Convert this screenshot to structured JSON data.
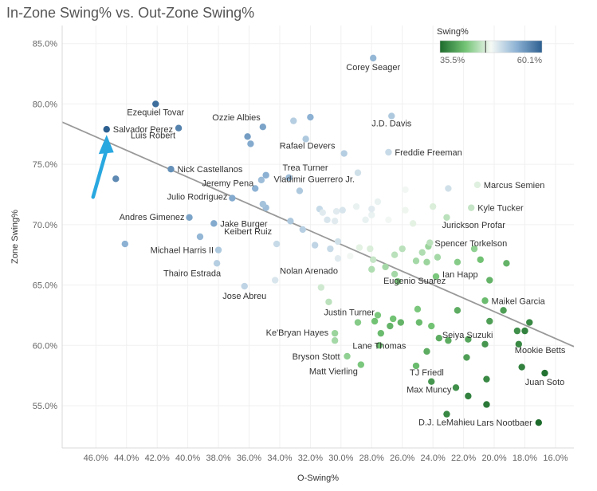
{
  "chart_data": {
    "type": "scatter",
    "title": "In-Zone Swing% vs. Out-Zone Swing%",
    "xlabel": "O-Swing%",
    "ylabel": "Zone Swing%",
    "x_reversed": true,
    "xlim": [
      48.2,
      14.8
    ],
    "ylim": [
      51.5,
      86.5
    ],
    "x_ticks": [
      "46.0%",
      "44.0%",
      "42.0%",
      "40.0%",
      "38.0%",
      "36.0%",
      "34.0%",
      "32.0%",
      "30.0%",
      "28.0%",
      "26.0%",
      "24.0%",
      "22.0%",
      "20.0%",
      "18.0%",
      "16.0%"
    ],
    "x_tick_values": [
      46,
      44,
      42,
      40,
      38,
      36,
      34,
      32,
      30,
      28,
      26,
      24,
      22,
      20,
      18,
      16
    ],
    "y_ticks": [
      "55.0%",
      "60.0%",
      "65.0%",
      "70.0%",
      "75.0%",
      "80.0%",
      "85.0%"
    ],
    "y_tick_values": [
      55,
      60,
      65,
      70,
      75,
      80,
      85
    ],
    "grid": true,
    "color_legend": {
      "title": "Swing%",
      "min_label": "35.5%",
      "max_label": "60.1%",
      "min": 35.5,
      "max": 60.1,
      "mid": 46.5,
      "colors": [
        "#1d6b2c",
        "#74c476",
        "#f5f9f5",
        "#8db2d4",
        "#2c5f90"
      ]
    },
    "trendline": {
      "x": [
        48.2,
        14.8
      ],
      "y": [
        78.5,
        59.9
      ],
      "color": "#999999"
    },
    "annotation": {
      "type": "arrow",
      "target": "Salvador Perez",
      "color": "#29a8e0"
    },
    "points": [
      {
        "name": "Corey Seager",
        "x": 27.9,
        "y": 83.8,
        "swing": 53.5
      },
      {
        "name": "Ezequiel Tovar",
        "x": 42.1,
        "y": 80.0,
        "swing": 59.0
      },
      {
        "name": "Salvador Perez",
        "x": 45.3,
        "y": 77.9,
        "swing": 60.1
      },
      {
        "name": "Luis Robert",
        "x": 40.6,
        "y": 78.0,
        "swing": 57.5
      },
      {
        "name": "Ozzie Albies",
        "x": 35.1,
        "y": 78.1,
        "swing": 55.0
      },
      {
        "name": "J.D. Davis",
        "x": 26.7,
        "y": 79.0,
        "swing": 52.0
      },
      {
        "name": "Rafael Devers",
        "x": 32.3,
        "y": 77.1,
        "swing": 52.0
      },
      {
        "name": "Freddie Freeman",
        "x": 26.9,
        "y": 76.0,
        "swing": 50.5
      },
      {
        "name": "Nick Castellanos",
        "x": 41.1,
        "y": 74.6,
        "swing": 56.5
      },
      {
        "name": "Trea Turner",
        "x": 33.4,
        "y": 73.9,
        "swing": 53.0
      },
      {
        "name": "Vladimir Guerrero Jr.",
        "x": 28.9,
        "y": 74.3,
        "swing": 50.0
      },
      {
        "name": "Marcus Semien",
        "x": 21.1,
        "y": 73.3,
        "swing": 46.8
      },
      {
        "name": "Jeremy Pena",
        "x": 35.6,
        "y": 73.0,
        "swing": 54.0
      },
      {
        "name": "Julio Rodriguez",
        "x": 37.1,
        "y": 72.2,
        "swing": 54.5
      },
      {
        "name": "Kyle Tucker",
        "x": 21.5,
        "y": 71.4,
        "swing": 45.5
      },
      {
        "name": "Andres Gimenez",
        "x": 39.9,
        "y": 70.6,
        "swing": 55.0
      },
      {
        "name": "Jurickson Profar",
        "x": 23.1,
        "y": 70.6,
        "swing": 45.0
      },
      {
        "name": "Jake Burger",
        "x": 38.3,
        "y": 70.1,
        "swing": 54.5
      },
      {
        "name": "Spencer Torkelson",
        "x": 24.3,
        "y": 68.2,
        "swing": 43.5
      },
      {
        "name": "Michael Harris II",
        "x": 38.0,
        "y": 67.9,
        "swing": 52.0
      },
      {
        "name": "Keibert Ruiz",
        "x": 34.2,
        "y": 68.4,
        "swing": 50.5
      },
      {
        "name": "Thairo Estrada",
        "x": 38.1,
        "y": 66.8,
        "swing": 51.5
      },
      {
        "name": "Nolan Arenado",
        "x": 34.3,
        "y": 65.4,
        "swing": 49.5
      },
      {
        "name": "Ian Happ",
        "x": 23.8,
        "y": 65.7,
        "swing": 42.0
      },
      {
        "name": "Jose Abreu",
        "x": 36.3,
        "y": 64.9,
        "swing": 51.0
      },
      {
        "name": "Eugenio Suarez",
        "x": 26.3,
        "y": 65.3,
        "swing": 42.0
      },
      {
        "name": "Maikel Garcia",
        "x": 20.6,
        "y": 63.7,
        "swing": 41.0
      },
      {
        "name": "Justin Turner",
        "x": 27.6,
        "y": 62.5,
        "swing": 42.0
      },
      {
        "name": "Ke'Bryan Hayes",
        "x": 30.4,
        "y": 61.0,
        "swing": 43.5
      },
      {
        "name": "Seiya Suzuki",
        "x": 23.6,
        "y": 60.6,
        "swing": 40.0
      },
      {
        "name": "Lane Thomas",
        "x": 27.5,
        "y": 60.0,
        "swing": 41.0
      },
      {
        "name": "Mookie Betts",
        "x": 18.4,
        "y": 60.1,
        "swing": 37.5
      },
      {
        "name": "Bryson Stott",
        "x": 29.6,
        "y": 59.1,
        "swing": 43.0
      },
      {
        "name": "Matt Vierling",
        "x": 28.7,
        "y": 58.4,
        "swing": 42.0
      },
      {
        "name": "TJ Friedl",
        "x": 25.1,
        "y": 58.3,
        "swing": 41.0
      },
      {
        "name": "Juan Soto",
        "x": 16.7,
        "y": 57.7,
        "swing": 36.0
      },
      {
        "name": "Max Muncy",
        "x": 24.1,
        "y": 57.0,
        "swing": 38.5
      },
      {
        "name": "D.J. LeMahieu",
        "x": 23.1,
        "y": 54.3,
        "swing": 37.5
      },
      {
        "name": "Lars Nootbaer",
        "x": 17.1,
        "y": 53.6,
        "swing": 35.5
      },
      {
        "name": "",
        "x": 44.7,
        "y": 73.8,
        "swing": 57.0
      },
      {
        "name": "",
        "x": 44.1,
        "y": 68.4,
        "swing": 54.0
      },
      {
        "name": "",
        "x": 39.2,
        "y": 69.0,
        "swing": 53.5
      },
      {
        "name": "",
        "x": 36.1,
        "y": 77.3,
        "swing": 55.5
      },
      {
        "name": "",
        "x": 35.9,
        "y": 76.7,
        "swing": 54.5
      },
      {
        "name": "",
        "x": 33.1,
        "y": 78.6,
        "swing": 51.5
      },
      {
        "name": "",
        "x": 32.0,
        "y": 78.9,
        "swing": 54.0
      },
      {
        "name": "",
        "x": 34.9,
        "y": 74.1,
        "swing": 54.0
      },
      {
        "name": "",
        "x": 35.2,
        "y": 73.7,
        "swing": 53.0
      },
      {
        "name": "",
        "x": 34.9,
        "y": 71.4,
        "swing": 53.0
      },
      {
        "name": "",
        "x": 35.1,
        "y": 71.7,
        "swing": 52.5
      },
      {
        "name": "",
        "x": 32.7,
        "y": 72.8,
        "swing": 52.0
      },
      {
        "name": "",
        "x": 33.3,
        "y": 70.3,
        "swing": 52.0
      },
      {
        "name": "",
        "x": 32.5,
        "y": 69.6,
        "swing": 51.5
      },
      {
        "name": "",
        "x": 29.8,
        "y": 75.9,
        "swing": 51.5
      },
      {
        "name": "",
        "x": 31.4,
        "y": 71.3,
        "swing": 50.5
      },
      {
        "name": "",
        "x": 31.2,
        "y": 71.0,
        "swing": 49.0
      },
      {
        "name": "",
        "x": 30.9,
        "y": 70.4,
        "swing": 49.5
      },
      {
        "name": "",
        "x": 30.3,
        "y": 71.1,
        "swing": 49.0
      },
      {
        "name": "",
        "x": 30.4,
        "y": 70.3,
        "swing": 49.0
      },
      {
        "name": "",
        "x": 29.9,
        "y": 71.2,
        "swing": 49.5
      },
      {
        "name": "",
        "x": 29.0,
        "y": 71.5,
        "swing": 48.5
      },
      {
        "name": "",
        "x": 28.0,
        "y": 70.8,
        "swing": 48.5
      },
      {
        "name": "",
        "x": 28.0,
        "y": 71.3,
        "swing": 49.0
      },
      {
        "name": "",
        "x": 28.4,
        "y": 70.4,
        "swing": 48.5
      },
      {
        "name": "",
        "x": 26.9,
        "y": 70.4,
        "swing": 48.0
      },
      {
        "name": "",
        "x": 25.8,
        "y": 72.9,
        "swing": 48.0
      },
      {
        "name": "",
        "x": 25.8,
        "y": 71.2,
        "swing": 47.5
      },
      {
        "name": "",
        "x": 27.6,
        "y": 71.9,
        "swing": 48.5
      },
      {
        "name": "",
        "x": 25.3,
        "y": 70.1,
        "swing": 47.0
      },
      {
        "name": "",
        "x": 24.0,
        "y": 71.5,
        "swing": 46.5
      },
      {
        "name": "",
        "x": 23.0,
        "y": 73.0,
        "swing": 50.0
      },
      {
        "name": "",
        "x": 31.7,
        "y": 68.3,
        "swing": 51.0
      },
      {
        "name": "",
        "x": 30.7,
        "y": 68.0,
        "swing": 50.5
      },
      {
        "name": "",
        "x": 30.2,
        "y": 68.6,
        "swing": 50.0
      },
      {
        "name": "",
        "x": 30.2,
        "y": 67.2,
        "swing": 49.0
      },
      {
        "name": "",
        "x": 29.4,
        "y": 67.4,
        "swing": 48.0
      },
      {
        "name": "",
        "x": 28.8,
        "y": 68.1,
        "swing": 47.0
      },
      {
        "name": "",
        "x": 28.1,
        "y": 68.0,
        "swing": 46.5
      },
      {
        "name": "",
        "x": 27.9,
        "y": 67.1,
        "swing": 45.5
      },
      {
        "name": "",
        "x": 28.0,
        "y": 66.3,
        "swing": 44.5
      },
      {
        "name": "",
        "x": 27.1,
        "y": 66.5,
        "swing": 44.0
      },
      {
        "name": "",
        "x": 26.5,
        "y": 67.5,
        "swing": 45.0
      },
      {
        "name": "",
        "x": 26.0,
        "y": 68.0,
        "swing": 45.0
      },
      {
        "name": "",
        "x": 26.5,
        "y": 65.9,
        "swing": 44.0
      },
      {
        "name": "",
        "x": 25.1,
        "y": 67.0,
        "swing": 44.0
      },
      {
        "name": "",
        "x": 24.7,
        "y": 67.7,
        "swing": 44.5
      },
      {
        "name": "",
        "x": 23.7,
        "y": 67.3,
        "swing": 44.0
      },
      {
        "name": "",
        "x": 24.4,
        "y": 66.9,
        "swing": 43.5
      },
      {
        "name": "",
        "x": 24.2,
        "y": 68.5,
        "swing": 45.0
      },
      {
        "name": "",
        "x": 22.4,
        "y": 66.9,
        "swing": 42.5
      },
      {
        "name": "",
        "x": 21.3,
        "y": 68.0,
        "swing": 43.0
      },
      {
        "name": "",
        "x": 20.9,
        "y": 67.1,
        "swing": 41.5
      },
      {
        "name": "",
        "x": 20.3,
        "y": 65.4,
        "swing": 40.5
      },
      {
        "name": "",
        "x": 19.2,
        "y": 66.8,
        "swing": 40.5
      },
      {
        "name": "",
        "x": 25.0,
        "y": 63.0,
        "swing": 42.0
      },
      {
        "name": "",
        "x": 24.1,
        "y": 61.6,
        "swing": 41.5
      },
      {
        "name": "",
        "x": 24.9,
        "y": 61.9,
        "swing": 41.0
      },
      {
        "name": "",
        "x": 27.8,
        "y": 62.0,
        "swing": 41.5
      },
      {
        "name": "",
        "x": 26.1,
        "y": 61.9,
        "swing": 40.5
      },
      {
        "name": "",
        "x": 26.6,
        "y": 62.2,
        "swing": 41.5
      },
      {
        "name": "",
        "x": 26.8,
        "y": 61.6,
        "swing": 40.5
      },
      {
        "name": "",
        "x": 27.4,
        "y": 61.0,
        "swing": 41.0
      },
      {
        "name": "",
        "x": 28.9,
        "y": 61.9,
        "swing": 42.5
      },
      {
        "name": "",
        "x": 30.4,
        "y": 60.4,
        "swing": 44.0
      },
      {
        "name": "",
        "x": 30.8,
        "y": 63.6,
        "swing": 45.0
      },
      {
        "name": "",
        "x": 31.3,
        "y": 64.8,
        "swing": 46.0
      },
      {
        "name": "",
        "x": 23.0,
        "y": 60.4,
        "swing": 40.0
      },
      {
        "name": "",
        "x": 22.4,
        "y": 62.9,
        "swing": 40.0
      },
      {
        "name": "",
        "x": 21.7,
        "y": 60.5,
        "swing": 39.5
      },
      {
        "name": "",
        "x": 20.6,
        "y": 60.1,
        "swing": 38.5
      },
      {
        "name": "",
        "x": 20.3,
        "y": 62.0,
        "swing": 39.0
      },
      {
        "name": "",
        "x": 19.4,
        "y": 62.9,
        "swing": 39.0
      },
      {
        "name": "",
        "x": 18.5,
        "y": 61.2,
        "swing": 38.0
      },
      {
        "name": "",
        "x": 18.0,
        "y": 61.2,
        "swing": 37.0
      },
      {
        "name": "",
        "x": 17.7,
        "y": 61.9,
        "swing": 37.5
      },
      {
        "name": "",
        "x": 24.4,
        "y": 59.5,
        "swing": 40.0
      },
      {
        "name": "",
        "x": 21.8,
        "y": 59.0,
        "swing": 39.0
      },
      {
        "name": "",
        "x": 22.5,
        "y": 56.5,
        "swing": 38.0
      },
      {
        "name": "",
        "x": 20.5,
        "y": 57.2,
        "swing": 37.5
      },
      {
        "name": "",
        "x": 18.2,
        "y": 58.2,
        "swing": 37.0
      },
      {
        "name": "",
        "x": 21.7,
        "y": 55.8,
        "swing": 37.0
      },
      {
        "name": "",
        "x": 20.5,
        "y": 55.1,
        "swing": 36.5
      }
    ]
  }
}
